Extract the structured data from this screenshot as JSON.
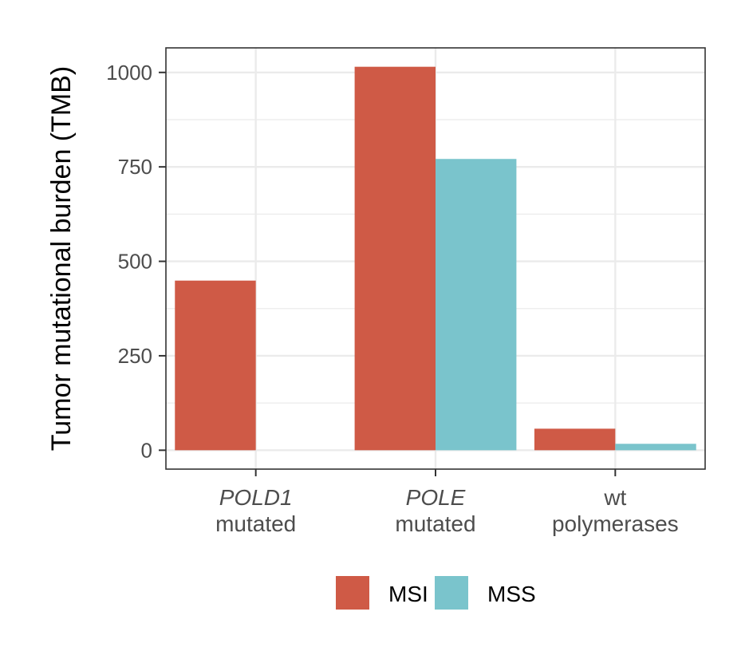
{
  "chart_data": {
    "type": "bar",
    "categories": [
      {
        "line1": "POLD1",
        "line1_italic": true,
        "line2": "mutated"
      },
      {
        "line1": "POLE",
        "line1_italic": true,
        "line2": "mutated"
      },
      {
        "line1": "wt",
        "line1_italic": false,
        "line2": "polymerases"
      }
    ],
    "series": [
      {
        "name": "MSI",
        "color": "#cf5a46",
        "values": [
          449,
          1015,
          57
        ]
      },
      {
        "name": "MSS",
        "color": "#7ac4cc",
        "values": [
          0,
          771,
          17
        ]
      }
    ],
    "xlabel": "",
    "ylabel": "Tumor mutational burden (TMB)",
    "ylim": [
      -50,
      1065
    ],
    "yticks": [
      0,
      250,
      500,
      750,
      1000
    ],
    "grid": true,
    "legend_position": "bottom"
  }
}
